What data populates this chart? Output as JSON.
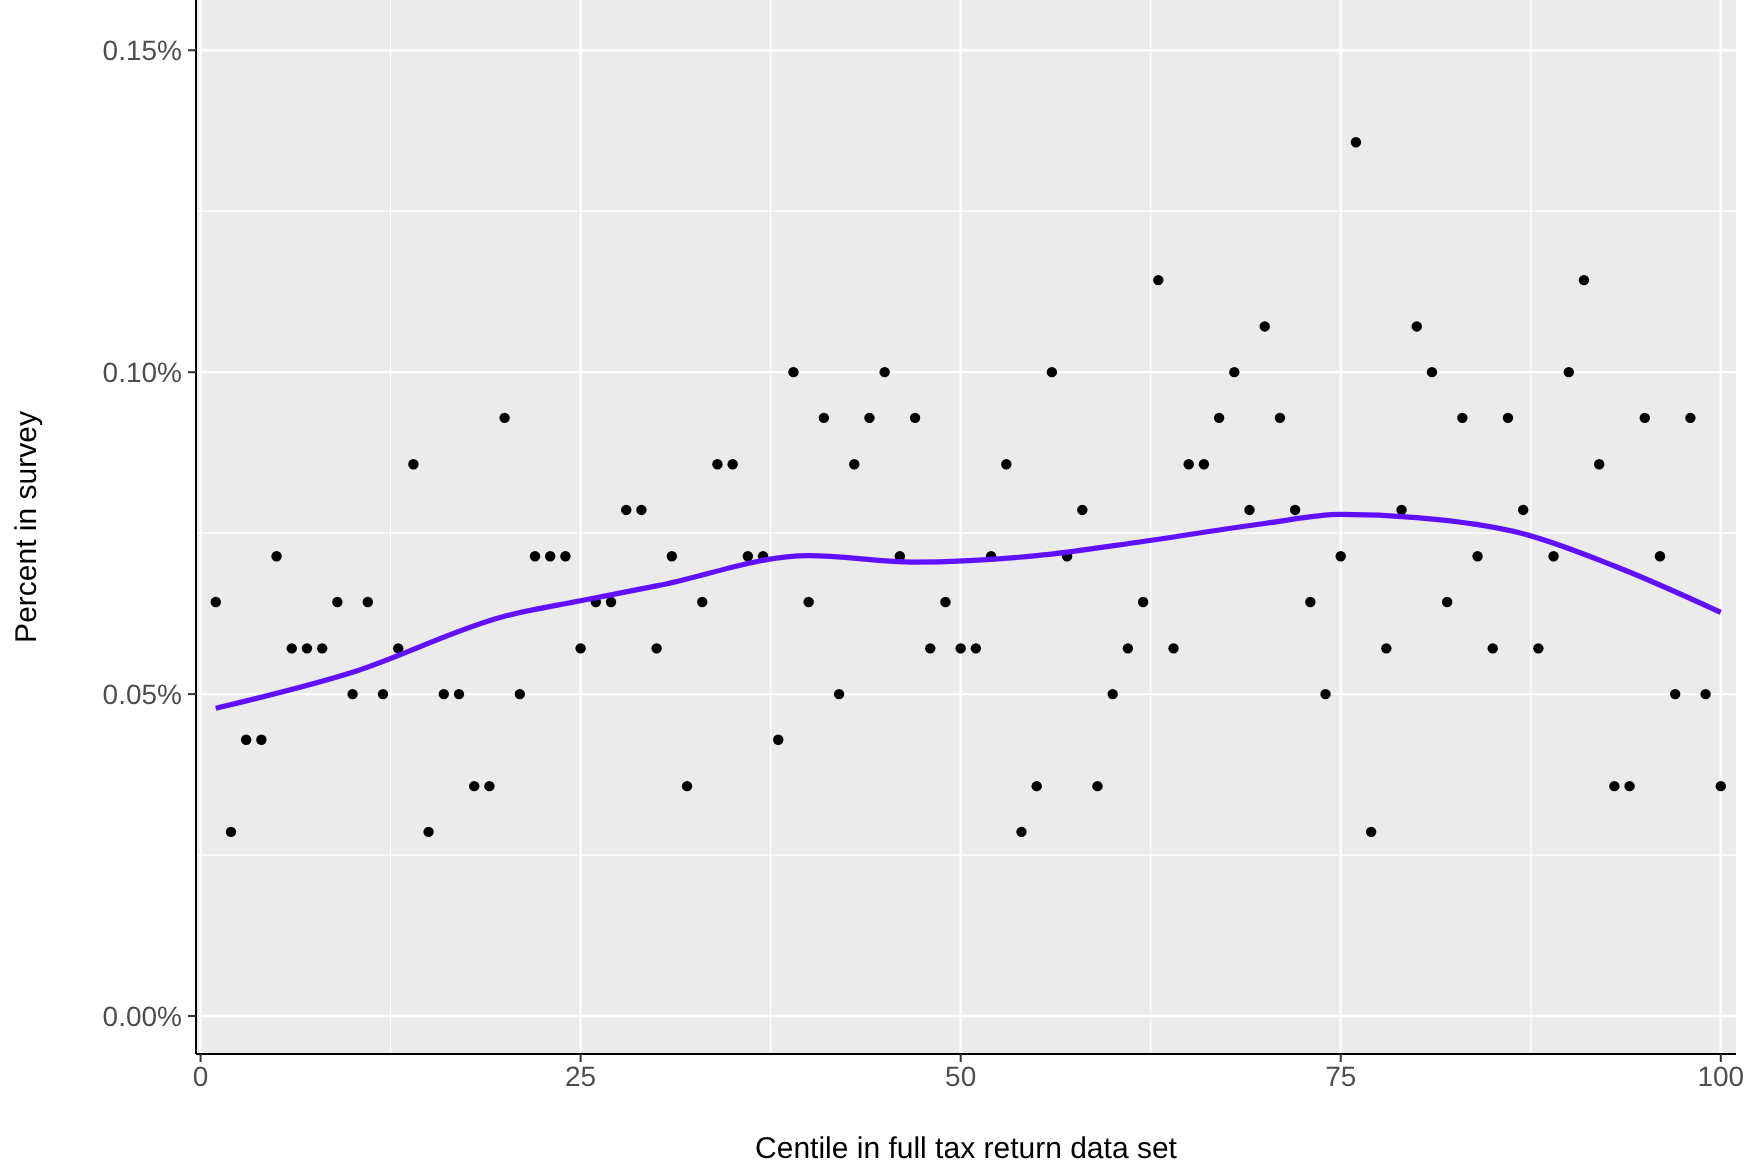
{
  "chart_data": {
    "type": "scatter",
    "xlabel": "Centile in full tax return data set",
    "ylabel": "Percent in survey",
    "xlim": [
      -0.3,
      101
    ],
    "xticks": [
      0,
      25,
      50,
      75,
      100
    ],
    "ylim": [
      -0.0059,
      0.1578
    ],
    "yticks": [
      {
        "value": 0,
        "label": "0.00%"
      },
      {
        "value": 0.05,
        "label": "0.05%"
      },
      {
        "value": 0.1,
        "label": "0.10%"
      },
      {
        "value": 0.15,
        "label": "0.15%"
      }
    ],
    "grid": true,
    "series": [
      {
        "marker": "circle",
        "color": "#000000",
        "x": [
          1,
          2,
          3,
          4,
          5,
          6,
          7,
          8,
          9,
          10,
          11,
          12,
          13,
          14,
          15,
          16,
          17,
          18,
          19,
          20,
          21,
          22,
          23,
          24,
          25,
          26,
          27,
          28,
          29,
          30,
          31,
          32,
          33,
          34,
          35,
          36,
          37,
          38,
          39,
          40,
          41,
          42,
          43,
          44,
          45,
          46,
          47,
          48,
          49,
          50,
          51,
          52,
          53,
          54,
          55,
          56,
          57,
          58,
          59,
          60,
          61,
          62,
          63,
          64,
          65,
          66,
          67,
          68,
          69,
          70,
          71,
          72,
          73,
          74,
          75,
          76,
          77,
          78,
          79,
          80,
          81,
          82,
          83,
          84,
          85,
          86,
          87,
          88,
          89,
          90,
          91,
          92,
          93,
          94,
          95,
          96,
          97,
          98,
          99,
          100
        ],
        "values": [
          0.0643,
          0.0286,
          0.0429,
          0.0429,
          0.0714,
          0.0571,
          0.0571,
          0.0571,
          0.0643,
          0.05,
          0.0643,
          0.05,
          0.0571,
          0.0857,
          0.0286,
          0.05,
          0.05,
          0.0357,
          0.0357,
          0.0929,
          0.05,
          0.0714,
          0.0714,
          0.0714,
          0.0571,
          0.0643,
          0.0643,
          0.0786,
          0.0786,
          0.0571,
          0.0714,
          0.0357,
          0.0643,
          0.0857,
          0.0857,
          0.0714,
          0.0714,
          0.0429,
          0.1,
          0.0643,
          0.0929,
          0.05,
          0.0857,
          0.0929,
          0.1,
          0.0714,
          0.0929,
          0.0571,
          0.0643,
          0.0571,
          0.0571,
          0.0714,
          0.0857,
          0.0286,
          0.0357,
          0.1,
          0.0714,
          0.0786,
          0.0357,
          0.05,
          0.0571,
          0.0643,
          0.1143,
          0.0571,
          0.0857,
          0.0857,
          0.0929,
          0.1,
          0.0786,
          0.1071,
          0.0929,
          0.0786,
          0.0643,
          0.05,
          0.0714,
          0.1357,
          0.0286,
          0.0571,
          0.0786,
          0.1071,
          0.1,
          0.0643,
          0.0929,
          0.0714,
          0.0571,
          0.0929,
          0.0786,
          0.0571,
          0.0714,
          0.1,
          0.1143,
          0.0857,
          0.0357,
          0.0357,
          0.0929,
          0.0714,
          0.05,
          0.0929,
          0.05,
          0.0357
        ]
      },
      {
        "type": "line",
        "color": "#6010ff",
        "x": [
          1,
          10,
          20,
          25,
          30,
          40,
          47,
          55,
          62,
          70,
          75,
          80,
          87,
          93,
          100
        ],
        "values": [
          0.0478,
          0.0534,
          0.0621,
          0.0645,
          0.0668,
          0.0715,
          0.0705,
          0.0715,
          0.0737,
          0.0765,
          0.0779,
          0.0774,
          0.0749,
          0.0699,
          0.0627
        ]
      }
    ]
  }
}
